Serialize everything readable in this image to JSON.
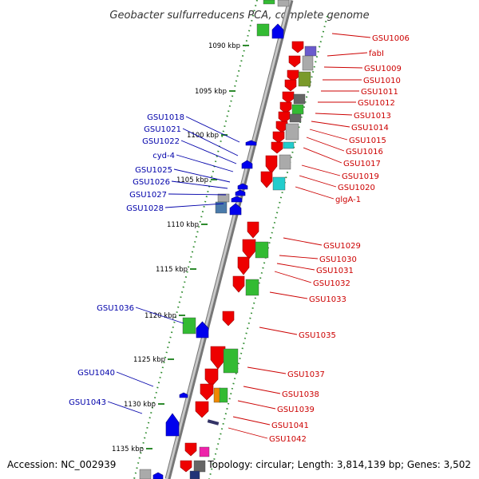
{
  "title": "Geobacter sulfurreducens PCA, complete genome",
  "footer": {
    "accession": "Accession: NC_002939",
    "stats": "Topology: circular; Length: 3,814,139 bp; Genes: 3,502"
  },
  "colors": {
    "backbone": "#8a8a8a",
    "tick": "#2e8b2e",
    "right_label": "#cc0000",
    "left_label": "#0000aa",
    "gene_red": "#ee0000",
    "gene_blue": "#0000ee",
    "cog_green": "#33bb33",
    "cog_gray": "#aaaaaa",
    "cog_purple": "#6a5acd",
    "cog_olive": "#7a9a2a",
    "cog_dark": "#666666",
    "cog_cyan": "#22cccc",
    "cog_orange": "#ee8800",
    "cog_pink": "#ee22aa",
    "cog_steel": "#4a7aaa"
  },
  "kbp_labels": [
    "1090 kbp",
    "1095 kbp",
    "1100 kbp",
    "1105 kbp",
    "1110 kbp",
    "1115 kbp",
    "1120 kbp",
    "1125 kbp",
    "1130 kbp",
    "1135 kbp"
  ],
  "right_genes": [
    "GSU1006",
    "fabI",
    "GSU1009",
    "GSU1010",
    "GSU1011",
    "GSU1012",
    "GSU1013",
    "GSU1014",
    "GSU1015",
    "GSU1016",
    "GSU1017",
    "GSU1019",
    "GSU1020",
    "glgA-1",
    "GSU1029",
    "GSU1030",
    "GSU1031",
    "GSU1032",
    "GSU1033",
    "GSU1035",
    "GSU1037",
    "GSU1038",
    "GSU1039",
    "GSU1041",
    "GSU1042"
  ],
  "left_genes": [
    "GSU1018",
    "GSU1021",
    "GSU1022",
    "cyd-4",
    "GSU1025",
    "GSU1026",
    "GSU1027",
    "GSU1028",
    "GSU1036",
    "GSU1040",
    "GSU1043"
  ]
}
